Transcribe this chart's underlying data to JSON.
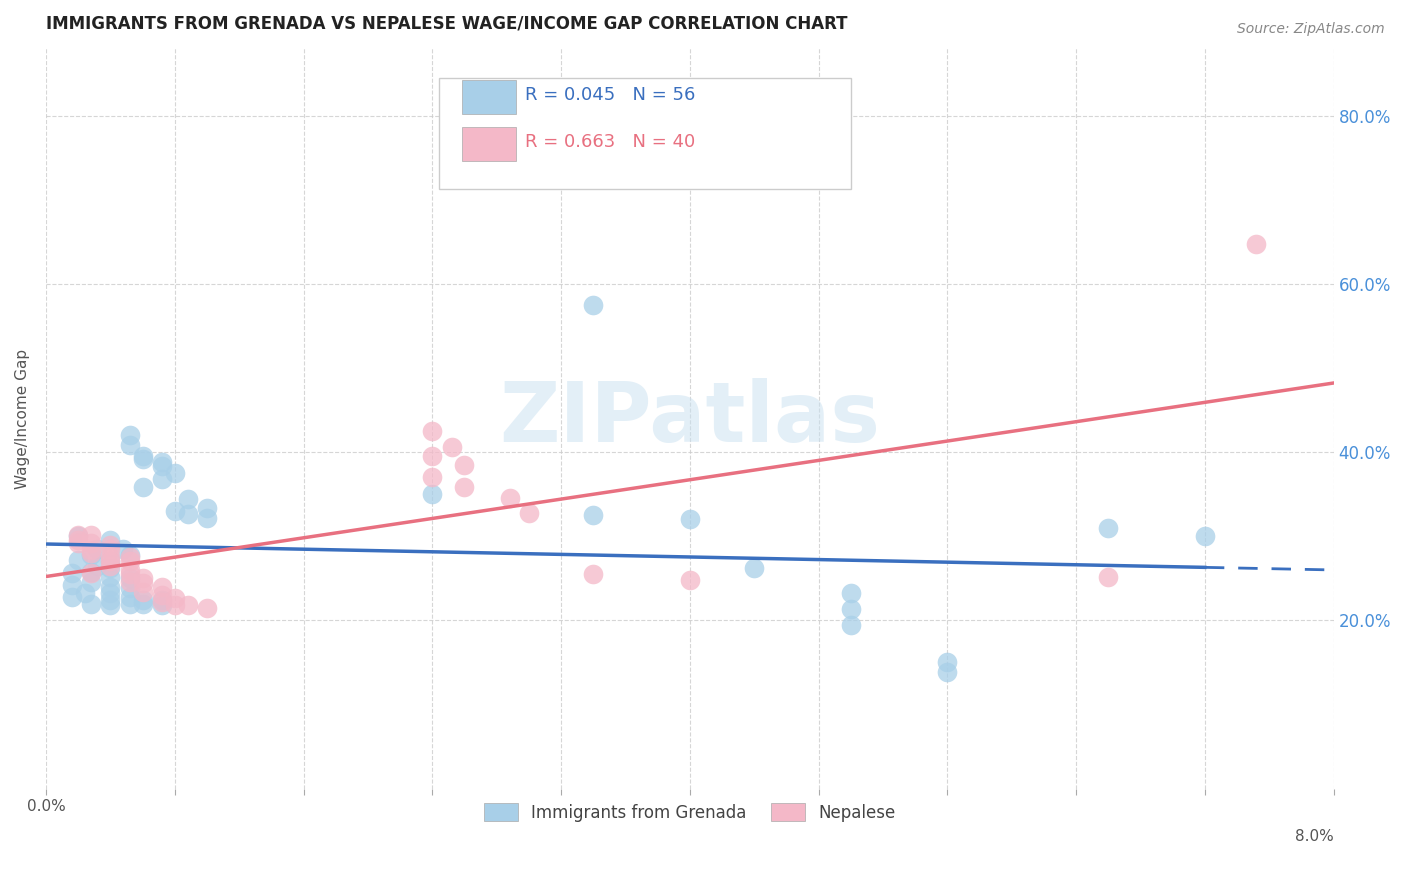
{
  "title": "IMMIGRANTS FROM GRENADA VS NEPALESE WAGE/INCOME GAP CORRELATION CHART",
  "source": "Source: ZipAtlas.com",
  "ylabel": "Wage/Income Gap",
  "legend1_r": "0.045",
  "legend1_n": "56",
  "legend2_r": "0.663",
  "legend2_n": "40",
  "blue_color": "#a8cfe8",
  "pink_color": "#f4b8c8",
  "blue_line_color": "#3a6fbf",
  "pink_line_color": "#e87080",
  "blue_scatter": [
    [
      0.0005,
      0.3
    ],
    [
      0.001,
      0.295
    ],
    [
      0.0008,
      0.285
    ],
    [
      0.0012,
      0.285
    ],
    [
      0.0007,
      0.278
    ],
    [
      0.0005,
      0.272
    ],
    [
      0.001,
      0.27
    ],
    [
      0.0008,
      0.265
    ],
    [
      0.0013,
      0.278
    ],
    [
      0.001,
      0.262
    ],
    [
      0.0007,
      0.258
    ],
    [
      0.0004,
      0.256
    ],
    [
      0.001,
      0.252
    ],
    [
      0.0013,
      0.25
    ],
    [
      0.0007,
      0.246
    ],
    [
      0.0004,
      0.242
    ],
    [
      0.001,
      0.24
    ],
    [
      0.0013,
      0.239
    ],
    [
      0.0006,
      0.232
    ],
    [
      0.001,
      0.232
    ],
    [
      0.0004,
      0.228
    ],
    [
      0.0013,
      0.228
    ],
    [
      0.001,
      0.224
    ],
    [
      0.0015,
      0.224
    ],
    [
      0.0013,
      0.22
    ],
    [
      0.0007,
      0.22
    ],
    [
      0.0018,
      0.224
    ],
    [
      0.0015,
      0.22
    ],
    [
      0.0018,
      0.218
    ],
    [
      0.001,
      0.218
    ],
    [
      0.0013,
      0.42
    ],
    [
      0.0013,
      0.408
    ],
    [
      0.0015,
      0.395
    ],
    [
      0.0018,
      0.388
    ],
    [
      0.0015,
      0.392
    ],
    [
      0.0018,
      0.384
    ],
    [
      0.002,
      0.375
    ],
    [
      0.0018,
      0.368
    ],
    [
      0.0015,
      0.358
    ],
    [
      0.0022,
      0.344
    ],
    [
      0.0025,
      0.334
    ],
    [
      0.002,
      0.33
    ],
    [
      0.0022,
      0.326
    ],
    [
      0.0025,
      0.322
    ],
    [
      0.006,
      0.35
    ],
    [
      0.0085,
      0.325
    ],
    [
      0.01,
      0.32
    ],
    [
      0.0085,
      0.575
    ],
    [
      0.011,
      0.262
    ],
    [
      0.0125,
      0.232
    ],
    [
      0.0125,
      0.214
    ],
    [
      0.0125,
      0.194
    ],
    [
      0.014,
      0.15
    ],
    [
      0.014,
      0.138
    ],
    [
      0.0165,
      0.31
    ],
    [
      0.018,
      0.3
    ]
  ],
  "pink_scatter": [
    [
      0.0005,
      0.302
    ],
    [
      0.0005,
      0.296
    ],
    [
      0.0007,
      0.302
    ],
    [
      0.0005,
      0.292
    ],
    [
      0.0007,
      0.292
    ],
    [
      0.0007,
      0.284
    ],
    [
      0.001,
      0.289
    ],
    [
      0.001,
      0.285
    ],
    [
      0.0007,
      0.28
    ],
    [
      0.001,
      0.275
    ],
    [
      0.0013,
      0.275
    ],
    [
      0.001,
      0.27
    ],
    [
      0.0013,
      0.27
    ],
    [
      0.001,
      0.265
    ],
    [
      0.0013,
      0.26
    ],
    [
      0.0007,
      0.256
    ],
    [
      0.0013,
      0.255
    ],
    [
      0.0015,
      0.25
    ],
    [
      0.0013,
      0.245
    ],
    [
      0.0015,
      0.244
    ],
    [
      0.0018,
      0.24
    ],
    [
      0.0015,
      0.234
    ],
    [
      0.0018,
      0.23
    ],
    [
      0.002,
      0.226
    ],
    [
      0.0018,
      0.222
    ],
    [
      0.002,
      0.218
    ],
    [
      0.0022,
      0.218
    ],
    [
      0.0025,
      0.215
    ],
    [
      0.006,
      0.425
    ],
    [
      0.0063,
      0.406
    ],
    [
      0.006,
      0.395
    ],
    [
      0.0065,
      0.385
    ],
    [
      0.006,
      0.37
    ],
    [
      0.0065,
      0.358
    ],
    [
      0.0072,
      0.345
    ],
    [
      0.0075,
      0.328
    ],
    [
      0.0085,
      0.255
    ],
    [
      0.01,
      0.248
    ],
    [
      0.0165,
      0.252
    ],
    [
      0.0188,
      0.648
    ]
  ],
  "xmin": 0.0,
  "xmax": 0.02,
  "ymin": 0.0,
  "ymax": 0.88,
  "ytick_vals": [
    0.2,
    0.4,
    0.6,
    0.8
  ],
  "xtick_vals": [
    0.0,
    0.002,
    0.004,
    0.006,
    0.008,
    0.01,
    0.012,
    0.014,
    0.016,
    0.018,
    0.02
  ],
  "xtick_labels": [
    "0.0%",
    "",
    "",
    "",
    "",
    "",
    "",
    "",
    "",
    "",
    ""
  ],
  "watermark": "ZIPatlas",
  "background_color": "#ffffff",
  "grid_color": "#cccccc",
  "legend_label1": "Immigrants from Grenada",
  "legend_label2": "Nepalese"
}
